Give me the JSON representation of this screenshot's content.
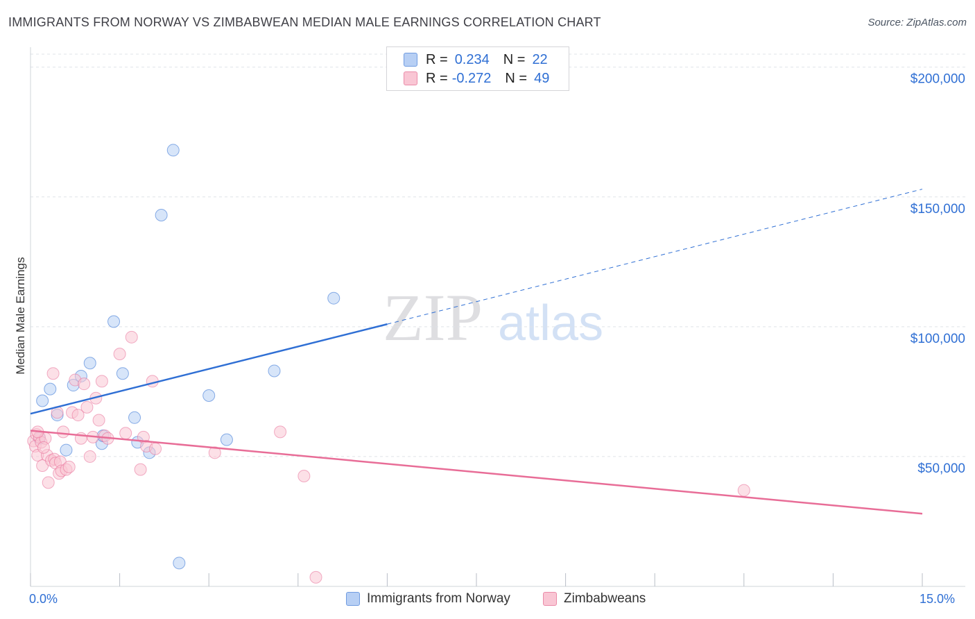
{
  "title": "IMMIGRANTS FROM NORWAY VS ZIMBABWEAN MEDIAN MALE EARNINGS CORRELATION CHART",
  "source": "Source: ZipAtlas.com",
  "watermark": {
    "zip": "ZIP",
    "atlas": "atlas"
  },
  "legend_stats": {
    "row1": {
      "r_label": "R =",
      "r_value": "0.234",
      "n_label": "N =",
      "n_value": "22"
    },
    "row2": {
      "r_label": "R =",
      "r_value": "-0.272",
      "n_label": "N =",
      "n_value": "49"
    }
  },
  "colors": {
    "blue": "#2f6fd4",
    "blue_fill": "#b7cff4",
    "pink": "#e86d97",
    "pink_fill": "#f9c6d4",
    "axis_text": "#2f6fd4",
    "grid": "#dfe3e8"
  },
  "chart_data": {
    "type": "scatter",
    "title": "IMMIGRANTS FROM NORWAY VS ZIMBABWEAN MEDIAN MALE EARNINGS CORRELATION CHART",
    "xlabel": "",
    "ylabel": "Median Male Earnings",
    "xlim": [
      0,
      15
    ],
    "ylim": [
      0,
      205000
    ],
    "x_tick_labels": [
      "0.0%",
      "15.0%"
    ],
    "y_ticks": [
      50000,
      100000,
      150000,
      200000
    ],
    "y_tick_labels": [
      "$50,000",
      "$100,000",
      "$150,000",
      "$200,000"
    ],
    "grid": true,
    "legend_position": "bottom",
    "series": [
      {
        "name": "Immigrants from Norway",
        "color": "#2f6fd4",
        "fill": "#b7cff4",
        "points": [
          [
            0.2,
            71500
          ],
          [
            0.33,
            76000
          ],
          [
            0.45,
            66000
          ],
          [
            0.6,
            52500
          ],
          [
            0.72,
            77500
          ],
          [
            0.85,
            81000
          ],
          [
            1.0,
            86000
          ],
          [
            1.2,
            55000
          ],
          [
            1.22,
            58000
          ],
          [
            1.4,
            102000
          ],
          [
            1.55,
            82000
          ],
          [
            1.75,
            65000
          ],
          [
            1.8,
            55500
          ],
          [
            2.0,
            51500
          ],
          [
            2.2,
            143000
          ],
          [
            2.4,
            168000
          ],
          [
            2.5,
            9000
          ],
          [
            3.0,
            73500
          ],
          [
            3.3,
            56500
          ],
          [
            4.1,
            83000
          ],
          [
            5.1,
            111000
          ],
          [
            0.15,
            57000
          ]
        ],
        "trend": {
          "x": [
            0,
            6.0
          ],
          "y": [
            66500,
            101000
          ],
          "dashed_extension": {
            "x": [
              6.0,
              15.0
            ],
            "y": [
              101000,
              153000
            ]
          }
        }
      },
      {
        "name": "Zimbabweans",
        "color": "#e86d97",
        "fill": "#f9c6d4",
        "points": [
          [
            0.05,
            56000
          ],
          [
            0.08,
            54000
          ],
          [
            0.1,
            58500
          ],
          [
            0.12,
            50500
          ],
          [
            0.15,
            57500
          ],
          [
            0.18,
            55500
          ],
          [
            0.2,
            46500
          ],
          [
            0.25,
            57000
          ],
          [
            0.28,
            50500
          ],
          [
            0.3,
            40000
          ],
          [
            0.35,
            48500
          ],
          [
            0.38,
            82000
          ],
          [
            0.4,
            49000
          ],
          [
            0.42,
            47500
          ],
          [
            0.45,
            67000
          ],
          [
            0.48,
            43500
          ],
          [
            0.5,
            48000
          ],
          [
            0.52,
            44500
          ],
          [
            0.55,
            59500
          ],
          [
            0.6,
            45000
          ],
          [
            0.65,
            46000
          ],
          [
            0.7,
            67000
          ],
          [
            0.75,
            79500
          ],
          [
            0.8,
            66000
          ],
          [
            0.85,
            57000
          ],
          [
            0.9,
            78000
          ],
          [
            0.95,
            69000
          ],
          [
            1.0,
            50000
          ],
          [
            1.05,
            57500
          ],
          [
            1.1,
            72500
          ],
          [
            1.15,
            64000
          ],
          [
            1.2,
            79000
          ],
          [
            1.25,
            58000
          ],
          [
            1.5,
            89500
          ],
          [
            1.6,
            59000
          ],
          [
            1.7,
            96000
          ],
          [
            1.85,
            45000
          ],
          [
            1.9,
            57500
          ],
          [
            1.95,
            54000
          ],
          [
            2.05,
            79000
          ],
          [
            2.1,
            53000
          ],
          [
            3.1,
            51500
          ],
          [
            4.2,
            59500
          ],
          [
            4.6,
            42500
          ],
          [
            4.8,
            3500
          ],
          [
            12.0,
            37000
          ],
          [
            0.12,
            59500
          ],
          [
            0.22,
            53500
          ],
          [
            1.3,
            57000
          ]
        ],
        "trend": {
          "x": [
            0,
            15.0
          ],
          "y": [
            60000,
            28000
          ]
        }
      }
    ]
  },
  "bottom_legend": {
    "items": [
      {
        "label": "Immigrants from Norway"
      },
      {
        "label": "Zimbabweans"
      }
    ]
  }
}
